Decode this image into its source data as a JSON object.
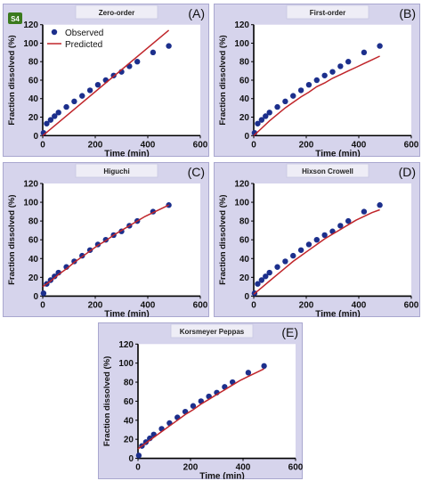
{
  "badge": "S4",
  "legend": {
    "observed": "Observed",
    "predicted": "Predicted"
  },
  "colors": {
    "panel_bg": "#d6d4ec",
    "plot_bg": "#ffffff",
    "observed": "#1c2f8c",
    "predicted": "#c0252a",
    "title_box": "#eeedf6"
  },
  "chart_data": [
    {
      "type": "scatter",
      "letter": "(A)",
      "title": "Zero-order",
      "xlabel": "Time (min)",
      "ylabel": "Fraction dissolved (%)",
      "xlim": [
        0,
        600
      ],
      "ylim": [
        0,
        120
      ],
      "xticks": [
        "0",
        "200",
        "400",
        "600"
      ],
      "yticks": [
        "0",
        "20",
        "40",
        "60",
        "80",
        "100",
        "120"
      ],
      "grid": false,
      "legend_position": "top-left",
      "series": [
        {
          "name": "Observed",
          "kind": "points",
          "x": [
            3,
            15,
            30,
            45,
            60,
            90,
            120,
            150,
            180,
            210,
            240,
            270,
            300,
            330,
            360,
            420,
            480
          ],
          "y": [
            3,
            13,
            17,
            21,
            25,
            31,
            37,
            43,
            49,
            55,
            60,
            65,
            69,
            75,
            80,
            90,
            97
          ]
        },
        {
          "name": "Predicted",
          "kind": "line",
          "x": [
            0,
            480
          ],
          "y": [
            0,
            114
          ]
        }
      ]
    },
    {
      "type": "scatter",
      "letter": "(B)",
      "title": "First-order",
      "xlabel": "Time (min)",
      "ylabel": "Fraction dissolved (%)",
      "xlim": [
        0,
        600
      ],
      "ylim": [
        0,
        120
      ],
      "xticks": [
        "0",
        "200",
        "400",
        "600"
      ],
      "yticks": [
        "0",
        "20",
        "40",
        "60",
        "80",
        "100",
        "120"
      ],
      "grid": false,
      "series": [
        {
          "name": "Observed",
          "kind": "points",
          "x": [
            3,
            15,
            30,
            45,
            60,
            90,
            120,
            150,
            180,
            210,
            240,
            270,
            300,
            330,
            360,
            420,
            480
          ],
          "y": [
            3,
            13,
            17,
            21,
            25,
            31,
            37,
            43,
            49,
            55,
            60,
            65,
            69,
            75,
            80,
            90,
            97
          ]
        },
        {
          "name": "Predicted",
          "kind": "line",
          "x": [
            0,
            30,
            60,
            90,
            120,
            150,
            180,
            210,
            240,
            270,
            300,
            330,
            360,
            390,
            420,
            450,
            480
          ],
          "y": [
            0,
            8,
            16,
            23,
            30,
            36,
            42,
            47,
            53,
            57,
            62,
            66,
            70,
            74,
            78,
            82,
            86
          ]
        }
      ]
    },
    {
      "type": "scatter",
      "letter": "(C)",
      "title": "Higuchi",
      "xlabel": "Time (min)",
      "ylabel": "Fraction dissolved (%)",
      "xlim": [
        0,
        600
      ],
      "ylim": [
        0,
        120
      ],
      "xticks": [
        "0",
        "200",
        "400",
        "600"
      ],
      "yticks": [
        "0",
        "20",
        "40",
        "60",
        "80",
        "100",
        "120"
      ],
      "grid": false,
      "series": [
        {
          "name": "Observed",
          "kind": "points",
          "x": [
            3,
            15,
            30,
            45,
            60,
            90,
            120,
            150,
            180,
            210,
            240,
            270,
            300,
            330,
            360,
            420,
            480
          ],
          "y": [
            3,
            13,
            17,
            21,
            25,
            31,
            37,
            43,
            49,
            55,
            60,
            65,
            69,
            75,
            80,
            90,
            97
          ]
        },
        {
          "name": "Predicted",
          "kind": "line",
          "x": [
            0,
            15,
            30,
            60,
            90,
            120,
            150,
            180,
            210,
            240,
            270,
            300,
            330,
            360,
            390,
            420,
            450,
            480
          ],
          "y": [
            10,
            13,
            16,
            23,
            29,
            36,
            42,
            48,
            54,
            59,
            65,
            70,
            75,
            80,
            85,
            89,
            93,
            97
          ]
        }
      ]
    },
    {
      "type": "scatter",
      "letter": "(D)",
      "title": "Hixson Crowell",
      "xlabel": "Time (min)",
      "ylabel": "Fraction dissolved (%)",
      "xlim": [
        0,
        600
      ],
      "ylim": [
        0,
        120
      ],
      "xticks": [
        "0",
        "200",
        "400",
        "600"
      ],
      "yticks": [
        "0",
        "20",
        "40",
        "60",
        "80",
        "100",
        "120"
      ],
      "grid": false,
      "series": [
        {
          "name": "Observed",
          "kind": "points",
          "x": [
            3,
            15,
            30,
            45,
            60,
            90,
            120,
            150,
            180,
            210,
            240,
            270,
            300,
            330,
            360,
            420,
            480
          ],
          "y": [
            3,
            13,
            17,
            21,
            25,
            31,
            37,
            43,
            49,
            55,
            60,
            65,
            69,
            75,
            80,
            90,
            97
          ]
        },
        {
          "name": "Predicted",
          "kind": "line",
          "x": [
            0,
            30,
            60,
            90,
            120,
            150,
            180,
            210,
            240,
            270,
            300,
            330,
            360,
            390,
            420,
            450,
            480
          ],
          "y": [
            2,
            9,
            16,
            23,
            30,
            37,
            43,
            49,
            55,
            61,
            66,
            71,
            76,
            81,
            85,
            89,
            92
          ]
        }
      ]
    },
    {
      "type": "scatter",
      "letter": "(E)",
      "title": "Korsmeyer Peppas",
      "xlabel": "Time (min)",
      "ylabel": "Fraction dissolved (%)",
      "xlim": [
        0,
        600
      ],
      "ylim": [
        0,
        120
      ],
      "xticks": [
        "0",
        "200",
        "400",
        "600"
      ],
      "yticks": [
        "0",
        "20",
        "40",
        "60",
        "80",
        "100",
        "120"
      ],
      "grid": false,
      "series": [
        {
          "name": "Observed",
          "kind": "points",
          "x": [
            3,
            15,
            30,
            45,
            60,
            90,
            120,
            150,
            180,
            210,
            240,
            270,
            300,
            330,
            360,
            420,
            480
          ],
          "y": [
            3,
            13,
            17,
            21,
            25,
            31,
            37,
            43,
            49,
            55,
            60,
            65,
            69,
            75,
            80,
            90,
            97
          ]
        },
        {
          "name": "Predicted",
          "kind": "line",
          "x": [
            0,
            15,
            30,
            60,
            90,
            120,
            150,
            180,
            210,
            240,
            270,
            300,
            330,
            360,
            390,
            420,
            450,
            480
          ],
          "y": [
            10,
            13,
            16,
            22,
            28,
            34,
            40,
            46,
            51,
            57,
            62,
            67,
            72,
            77,
            82,
            86,
            90,
            94
          ]
        }
      ]
    }
  ]
}
